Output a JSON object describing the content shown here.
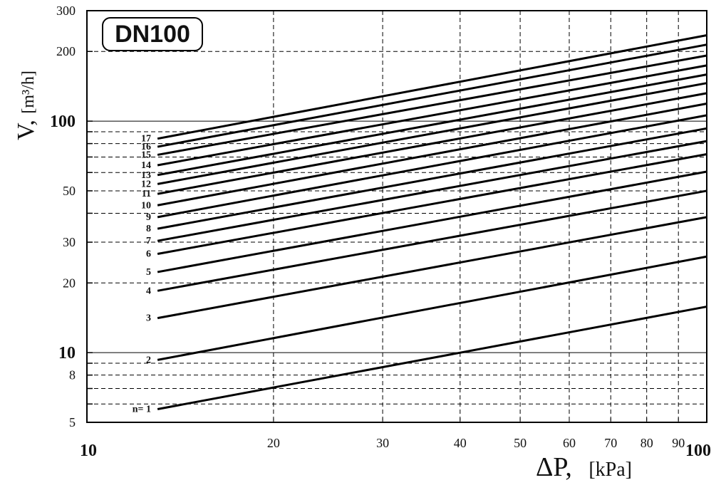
{
  "chart_data": {
    "type": "line",
    "title": "DN100",
    "xlabel": "ΔP,",
    "xlabel_unit": "[kPa]",
    "ylabel": "V,",
    "ylabel_unit": "[m³/h]",
    "x_scale": "log",
    "y_scale": "log",
    "xlim": [
      10,
      100
    ],
    "ylim": [
      5,
      300
    ],
    "grid": true,
    "x_ticks": [
      10,
      20,
      30,
      40,
      50,
      60,
      70,
      80,
      90,
      100
    ],
    "x_tick_labels": [
      "10",
      "20",
      "30",
      "40",
      "50",
      "60",
      "70",
      "80",
      "90",
      "100"
    ],
    "x_major_ticks": [
      10,
      100
    ],
    "y_ticks": [
      5,
      6,
      7,
      8,
      9,
      10,
      20,
      30,
      40,
      50,
      60,
      70,
      80,
      90,
      100,
      200,
      300
    ],
    "y_tick_labels": [
      {
        "value": 5,
        "label": "5"
      },
      {
        "value": 8,
        "label": "8"
      },
      {
        "value": 10,
        "label": "10"
      },
      {
        "value": 20,
        "label": "20"
      },
      {
        "value": 30,
        "label": "30"
      },
      {
        "value": 50,
        "label": "50"
      },
      {
        "value": 100,
        "label": "100"
      },
      {
        "value": 200,
        "label": "200"
      },
      {
        "value": 300,
        "label": "300"
      }
    ],
    "y_major_ticks": [
      10,
      100
    ],
    "series": [
      {
        "label": "n= 1",
        "points": [
          [
            13,
            5.7
          ],
          [
            100,
            15.8
          ]
        ]
      },
      {
        "label": "2",
        "points": [
          [
            13,
            9.3
          ],
          [
            100,
            26
          ]
        ]
      },
      {
        "label": "3",
        "points": [
          [
            13,
            14.1
          ],
          [
            100,
            38.5
          ]
        ]
      },
      {
        "label": "4",
        "points": [
          [
            13,
            18.5
          ],
          [
            100,
            50
          ]
        ]
      },
      {
        "label": "5",
        "points": [
          [
            13,
            22.3
          ],
          [
            100,
            60.5
          ]
        ]
      },
      {
        "label": "6",
        "points": [
          [
            13,
            26.7
          ],
          [
            100,
            72
          ]
        ]
      },
      {
        "label": "7",
        "points": [
          [
            13,
            30.4
          ],
          [
            100,
            82
          ]
        ]
      },
      {
        "label": "8",
        "points": [
          [
            13,
            34.3
          ],
          [
            100,
            93
          ]
        ]
      },
      {
        "label": "9",
        "points": [
          [
            13,
            38.5
          ],
          [
            100,
            106
          ]
        ]
      },
      {
        "label": "10",
        "points": [
          [
            13,
            43.3
          ],
          [
            100,
            119
          ]
        ]
      },
      {
        "label": "11",
        "points": [
          [
            13,
            48.5
          ],
          [
            100,
            132
          ]
        ]
      },
      {
        "label": "12",
        "points": [
          [
            13,
            53.5
          ],
          [
            100,
            146
          ]
        ]
      },
      {
        "label": "13",
        "points": [
          [
            13,
            58.5
          ],
          [
            100,
            159
          ]
        ]
      },
      {
        "label": "14",
        "points": [
          [
            13,
            64.5
          ],
          [
            100,
            174
          ]
        ]
      },
      {
        "label": "15",
        "points": [
          [
            13,
            71.5
          ],
          [
            100,
            192
          ]
        ]
      },
      {
        "label": "16",
        "points": [
          [
            13,
            77.5
          ],
          [
            100,
            214
          ]
        ]
      },
      {
        "label": "17",
        "points": [
          [
            13,
            84
          ],
          [
            100,
            235
          ]
        ]
      }
    ]
  }
}
